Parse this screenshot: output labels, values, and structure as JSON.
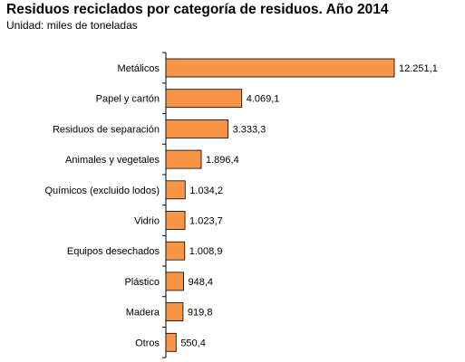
{
  "chart_data": {
    "type": "bar",
    "orientation": "horizontal",
    "title": "Residuos reciclados por categoría de residuos. Año 2014",
    "subtitle": "Unidad: miles de toneladas",
    "categories": [
      "Metálicos",
      "Papel y cartón",
      "Residuos de separación",
      "Animales y vegetales",
      "Químicos (excluido lodos)",
      "Vidrio",
      "Equipos desechados",
      "Plástico",
      "Madera",
      "Otros"
    ],
    "values": [
      12251.1,
      4069.1,
      3333.3,
      1896.4,
      1034.2,
      1023.7,
      1008.9,
      948.4,
      919.8,
      550.4
    ],
    "value_labels": [
      "12.251,1",
      "4.069,1",
      "3.333,3",
      "1.896,4",
      "1.034,2",
      "1.023,7",
      "1.008,9",
      "948,4",
      "919,8",
      "550,4"
    ],
    "bar_color": "#F79646",
    "bar_edge_color": "#000000",
    "grid": false,
    "legend": "none"
  }
}
